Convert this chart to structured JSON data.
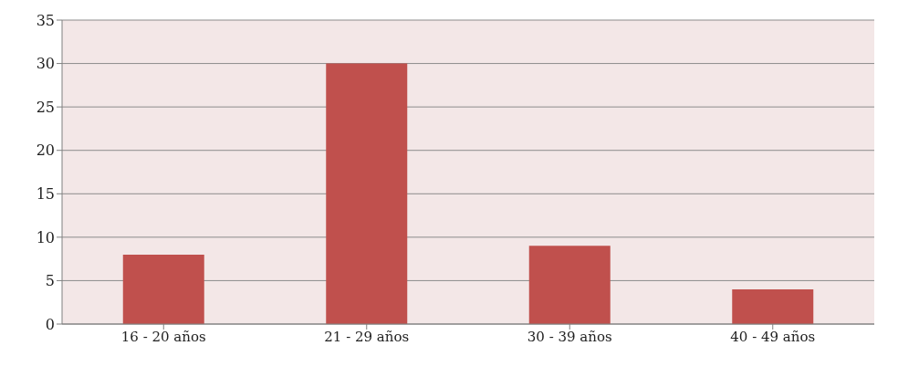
{
  "chart_data": {
    "type": "bar",
    "categories": [
      "16 - 20 años",
      "21 - 29 años",
      "30 - 39 años",
      "40 - 49 años"
    ],
    "values": [
      8,
      30,
      9,
      4
    ],
    "color": "#c0504d",
    "ylim": [
      0,
      35
    ],
    "yticks": [
      0,
      5,
      10,
      15,
      20,
      25,
      30,
      35
    ],
    "grid": "y"
  }
}
